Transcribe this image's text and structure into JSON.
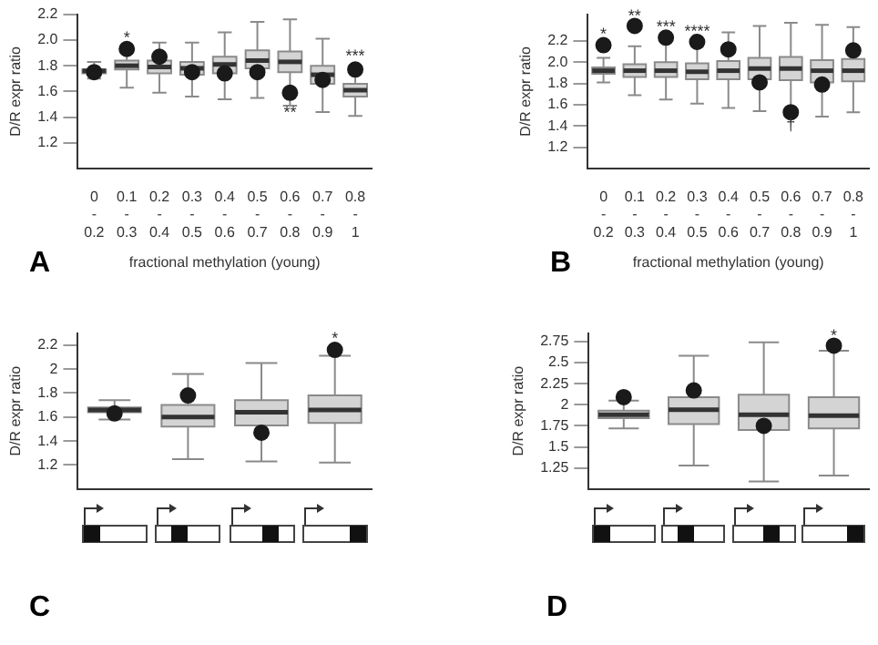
{
  "chart_data": [
    {
      "type": "box",
      "title": "A",
      "xlabel": "fractional methylation (young)",
      "ylabel": "D/R expr ratio",
      "categories": [
        "0\n-\n0.2",
        "0.1\n-\n0.3",
        "0.2\n-\n0.4",
        "0.3\n-\n0.5",
        "0.4\n-\n0.6",
        "0.5\n-\n0.7",
        "0.6\n-\n0.8",
        "0.7\n-\n0.9",
        "0.8\n-\n1"
      ],
      "ylim": [
        1.0,
        2.2
      ],
      "yticks": [
        1.2,
        1.4,
        1.6,
        1.8,
        {
          "value": 2.0,
          "label": "2.0"
        },
        2.2
      ],
      "series": [
        {
          "type": "box",
          "color": "#d4d4d4",
          "boxes": [
            {
              "low": 1.7,
              "q1": 1.74,
              "median": 1.76,
              "q3": 1.77,
              "high": 1.83
            },
            {
              "low": 1.63,
              "q1": 1.77,
              "median": 1.8,
              "q3": 1.84,
              "high": 1.9
            },
            {
              "low": 1.59,
              "q1": 1.74,
              "median": 1.79,
              "q3": 1.84,
              "high": 1.98
            },
            {
              "low": 1.56,
              "q1": 1.73,
              "median": 1.78,
              "q3": 1.83,
              "high": 1.98
            },
            {
              "low": 1.54,
              "q1": 1.74,
              "median": 1.81,
              "q3": 1.87,
              "high": 2.06
            },
            {
              "low": 1.55,
              "q1": 1.78,
              "median": 1.84,
              "q3": 1.92,
              "high": 2.14
            },
            {
              "low": 1.49,
              "q1": 1.75,
              "median": 1.83,
              "q3": 1.91,
              "high": 2.16
            },
            {
              "low": 1.44,
              "q1": 1.66,
              "median": 1.73,
              "q3": 1.8,
              "high": 2.01
            },
            {
              "low": 1.41,
              "q1": 1.56,
              "median": 1.61,
              "q3": 1.66,
              "high": 1.8
            }
          ]
        },
        {
          "type": "scatter",
          "color": "#1a1a1a",
          "marker": "circle",
          "x": [
            "0\n-\n0.2",
            "0.1\n-\n0.3",
            "0.2\n-\n0.4",
            "0.3\n-\n0.5",
            "0.4\n-\n0.6",
            "0.5\n-\n0.7",
            "0.6\n-\n0.8",
            "0.7\n-\n0.9",
            "0.8\n-\n1"
          ],
          "values": [
            1.75,
            1.93,
            1.87,
            1.75,
            1.74,
            1.75,
            1.59,
            1.69,
            1.77
          ]
        }
      ],
      "annotations": [
        {
          "text": "*",
          "x": "0.1\n-\n0.3",
          "y": 2.01
        },
        {
          "text": "**",
          "x": "0.6\n-\n0.8",
          "y": 1.43
        },
        {
          "text": "***",
          "x": "0.8\n-\n1",
          "y": 1.87
        }
      ]
    },
    {
      "type": "box",
      "title": "B",
      "xlabel": "fractional methylation (young)",
      "ylabel": "D/R expr ratio",
      "categories": [
        "0\n-\n0.2",
        "0.1\n-\n0.3",
        "0.2\n-\n0.4",
        "0.3\n-\n0.5",
        "0.4\n-\n0.6",
        "0.5\n-\n0.7",
        "0.6\n-\n0.8",
        "0.7\n-\n0.9",
        "0.8\n-\n1"
      ],
      "ylim": [
        1.0,
        2.45
      ],
      "yticks": [
        1.2,
        1.4,
        1.6,
        1.8,
        {
          "value": 2.0,
          "label": "2.0"
        },
        2.2
      ],
      "series": [
        {
          "type": "box",
          "color": "#d4d4d4",
          "boxes": [
            {
              "low": 1.81,
              "q1": 1.89,
              "median": 1.92,
              "q3": 1.95,
              "high": 2.04
            },
            {
              "low": 1.69,
              "q1": 1.86,
              "median": 1.92,
              "q3": 1.98,
              "high": 2.15
            },
            {
              "low": 1.65,
              "q1": 1.86,
              "median": 1.92,
              "q3": 2.0,
              "high": 2.2
            },
            {
              "low": 1.61,
              "q1": 1.84,
              "median": 1.91,
              "q3": 1.99,
              "high": 2.15
            },
            {
              "low": 1.57,
              "q1": 1.84,
              "median": 1.92,
              "q3": 2.01,
              "high": 2.28
            },
            {
              "low": 1.54,
              "q1": 1.84,
              "median": 1.94,
              "q3": 2.04,
              "high": 2.34
            },
            {
              "low": 1.56,
              "q1": 1.83,
              "median": 1.94,
              "q3": 2.05,
              "high": 2.37
            },
            {
              "low": 1.49,
              "q1": 1.81,
              "median": 1.92,
              "q3": 2.02,
              "high": 2.35
            },
            {
              "low": 1.53,
              "q1": 1.82,
              "median": 1.92,
              "q3": 2.03,
              "high": 2.33
            }
          ]
        },
        {
          "type": "scatter",
          "color": "#1a1a1a",
          "marker": "circle",
          "x": [
            "0\n-\n0.2",
            "0.1\n-\n0.3",
            "0.2\n-\n0.4",
            "0.3\n-\n0.5",
            "0.4\n-\n0.6",
            "0.5\n-\n0.7",
            "0.6\n-\n0.8",
            "0.7\n-\n0.9",
            "0.8\n-\n1"
          ],
          "values": [
            2.16,
            2.34,
            2.23,
            2.19,
            2.12,
            1.81,
            1.53,
            1.79,
            2.11
          ]
        }
      ],
      "annotations": [
        {
          "text": "*",
          "x": "0\n-\n0.2",
          "y": 2.26
        },
        {
          "text": "**",
          "x": "0.1\n-\n0.3",
          "y": 2.43
        },
        {
          "text": "***",
          "x": "0.2\n-\n0.4",
          "y": 2.33
        },
        {
          "text": "****",
          "x": "0.3\n-\n0.5",
          "y": 2.28
        },
        {
          "text": "†",
          "x": "0.6\n-\n0.8",
          "y": 1.4
        }
      ]
    },
    {
      "type": "box",
      "title": "C",
      "ylabel": "D/R expr ratio",
      "categories": [
        null,
        null,
        null,
        null
      ],
      "ylim": [
        1.0,
        2.3
      ],
      "yticks": [
        1.2,
        1.4,
        1.6,
        1.8,
        2,
        2.2
      ],
      "series": [
        {
          "type": "box",
          "color": "#d4d4d4",
          "boxes": [
            {
              "low": 1.58,
              "q1": 1.64,
              "median": 1.66,
              "q3": 1.68,
              "high": 1.74
            },
            {
              "low": 1.25,
              "q1": 1.52,
              "median": 1.6,
              "q3": 1.7,
              "high": 1.96
            },
            {
              "low": 1.23,
              "q1": 1.53,
              "median": 1.64,
              "q3": 1.74,
              "high": 2.05
            },
            {
              "low": 1.22,
              "q1": 1.55,
              "median": 1.66,
              "q3": 1.78,
              "high": 2.11
            }
          ]
        },
        {
          "type": "scatter",
          "color": "#1a1a1a",
          "marker": "circle",
          "values": [
            1.63,
            1.78,
            1.47,
            2.16
          ]
        }
      ],
      "annotations": [
        {
          "text": "*",
          "y": 2.25
        }
      ]
    },
    {
      "type": "box",
      "title": "D",
      "ylabel": "D/R expr ratio",
      "categories": [
        null,
        null,
        null,
        null
      ],
      "ylim": [
        1.0,
        2.85
      ],
      "yticks": [
        1.25,
        1.5,
        1.75,
        2,
        2.25,
        2.5,
        2.75
      ],
      "series": [
        {
          "type": "box",
          "color": "#d4d4d4",
          "boxes": [
            {
              "low": 1.72,
              "q1": 1.84,
              "median": 1.88,
              "q3": 1.93,
              "high": 2.05
            },
            {
              "low": 1.28,
              "q1": 1.77,
              "median": 1.94,
              "q3": 2.09,
              "high": 2.58
            },
            {
              "low": 1.09,
              "q1": 1.7,
              "median": 1.88,
              "q3": 2.12,
              "high": 2.74
            },
            {
              "low": 1.16,
              "q1": 1.72,
              "median": 1.87,
              "q3": 2.09,
              "high": 2.64
            }
          ]
        },
        {
          "type": "scatter",
          "color": "#1a1a1a",
          "marker": "circle",
          "values": [
            2.09,
            2.17,
            1.75,
            2.7
          ]
        }
      ],
      "annotations": [
        {
          "text": "*",
          "y": 2.81
        }
      ]
    }
  ]
}
